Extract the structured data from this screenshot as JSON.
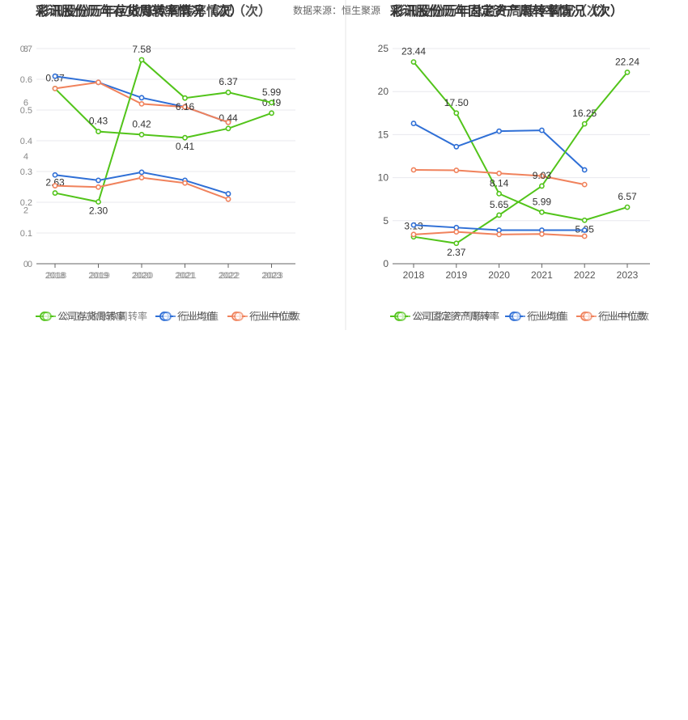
{
  "source_text": "数据来源：恒生聚源",
  "chart_data": [
    {
      "id": "left",
      "type": "line",
      "title": "彩讯股份历年存货周转率情况（次）",
      "title_overlay": "彩讯股份历年应收账款周转率情况（次）",
      "categories": [
        "2018",
        "2019",
        "2020",
        "2021",
        "2022",
        "2023"
      ],
      "ylim": [
        0,
        0.7
      ],
      "yticks": [
        "0",
        "0.1",
        "0.2",
        "0.3",
        "0.4",
        "0.5",
        "0.6",
        "0.7"
      ],
      "ylim_overlay": [
        0,
        8
      ],
      "yticks_overlay": [
        "0",
        "2",
        "4",
        "6",
        "8"
      ],
      "series": [
        {
          "name": "公司存货周转率",
          "color": "#52c41a",
          "axis": "primary",
          "values": [
            0.57,
            0.43,
            0.42,
            0.41,
            0.44,
            0.49
          ],
          "labels": [
            "0.57",
            "0.43",
            "0.42",
            "0.41",
            "0.44",
            "0.49"
          ]
        },
        {
          "name": "行业均值",
          "color": "#2f6fd6",
          "axis": "primary",
          "values": [
            0.61,
            0.59,
            0.54,
            0.51,
            0.46,
            null
          ]
        },
        {
          "name": "行业中位数",
          "color": "#f0825c",
          "axis": "primary",
          "values": [
            0.57,
            0.59,
            0.52,
            0.51,
            0.46,
            null
          ]
        },
        {
          "name": "公司应收账款周转率",
          "color": "#52c41a",
          "axis": "overlay",
          "values": [
            2.63,
            2.3,
            7.58,
            6.16,
            6.37,
            5.99
          ],
          "labels": [
            "2.63",
            "2.30",
            "7.58",
            "6.16",
            "6.37",
            "5.99"
          ]
        },
        {
          "name": "行业均值",
          "color": "#2f6fd6",
          "axis": "overlay",
          "values": [
            3.3,
            3.1,
            3.4,
            3.1,
            2.6,
            null
          ]
        },
        {
          "name": "行业中位数",
          "color": "#f0825c",
          "axis": "overlay",
          "values": [
            2.9,
            2.85,
            3.2,
            3.0,
            2.4,
            null
          ]
        }
      ],
      "legend": [
        "公司存货周转率",
        "行业均值",
        "行业中位数"
      ],
      "legend_overlay": [
        "公司应收账款周转率",
        "行业均值",
        "行业中位数"
      ],
      "legend_position": "bottom"
    },
    {
      "id": "right",
      "type": "line",
      "title": "彩讯股份历年固定资产周转率情况（次）",
      "title_overlay": "彩讯股份历年总资产周转率情况（次）",
      "categories": [
        "2018",
        "2019",
        "2020",
        "2021",
        "2022",
        "2023"
      ],
      "ylim": [
        0,
        25
      ],
      "yticks": [
        "0",
        "5",
        "10",
        "15",
        "20",
        "25"
      ],
      "series": [
        {
          "name": "公司固定资产周转率",
          "color": "#52c41a",
          "axis": "primary",
          "values": [
            23.44,
            17.5,
            8.14,
            5.99,
            5.05,
            6.57
          ],
          "labels": [
            "23.44",
            "17.50",
            "8.14",
            "5.99",
            "5.05",
            "6.57"
          ]
        },
        {
          "name": "行业均值",
          "color": "#2f6fd6",
          "axis": "primary",
          "values": [
            16.3,
            13.6,
            15.4,
            15.5,
            10.9,
            null
          ]
        },
        {
          "name": "行业中位数",
          "color": "#f0825c",
          "axis": "primary",
          "values": [
            10.9,
            10.85,
            10.5,
            10.2,
            9.2,
            null
          ]
        },
        {
          "name": "公司总资产周转率",
          "color": "#52c41a",
          "axis": "primary",
          "values": [
            3.13,
            2.37,
            5.65,
            9.03,
            16.25,
            22.24
          ],
          "labels": [
            "3.13",
            "2.37",
            "5.65",
            "9.03",
            "16.25",
            "22.24"
          ]
        },
        {
          "name": "行业均值",
          "color": "#2f6fd6",
          "axis": "primary",
          "values": [
            4.5,
            4.2,
            3.9,
            3.9,
            3.9,
            null
          ]
        },
        {
          "name": "行业中位数",
          "color": "#f0825c",
          "axis": "primary",
          "values": [
            3.4,
            3.7,
            3.4,
            3.45,
            3.2,
            null
          ]
        }
      ],
      "legend": [
        "公司固定资产周转率",
        "行业均值",
        "行业中位数"
      ],
      "legend_overlay": [
        "公司总资产周转率",
        "行业均值",
        "行业中位数"
      ],
      "legend_position": "bottom"
    }
  ]
}
